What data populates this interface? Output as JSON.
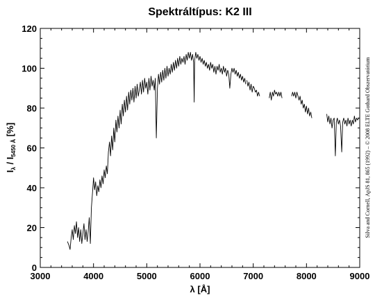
{
  "chart_data": {
    "type": "line",
    "title": "Spektráltípus: K2 III",
    "xlabel": "λ [Å]",
    "ylabel": {
      "main_a": "I",
      "sub_a": "λ",
      "sep": " / I",
      "sub_b": "5450 Å",
      "unit": " [%]"
    },
    "xlim": [
      3000,
      9000
    ],
    "ylim": [
      0,
      120
    ],
    "xticks": [
      "3000",
      "4000",
      "5000",
      "6000",
      "7000",
      "8000",
      "9000"
    ],
    "yticks": [
      "0",
      "20",
      "40",
      "60",
      "80",
      "100",
      "120"
    ],
    "xtick_values": [
      3000,
      4000,
      5000,
      6000,
      7000,
      8000,
      9000
    ],
    "ytick_values": [
      0,
      20,
      40,
      60,
      80,
      100,
      120
    ],
    "credit": "Silva and Cornell, ApJS 81, 865 (1992) – © 2008 ELTE Gothard Obszervatórium",
    "grid": false,
    "series": [
      {
        "segments": [
          [
            [
              3510,
              13
            ],
            [
              3540,
              11
            ],
            [
              3560,
              9
            ],
            [
              3580,
              15
            ],
            [
              3600,
              19
            ],
            [
              3620,
              14
            ],
            [
              3640,
              21
            ],
            [
              3660,
              17
            ],
            [
              3680,
              23
            ],
            [
              3700,
              15
            ],
            [
              3720,
              20
            ],
            [
              3740,
              13
            ],
            [
              3760,
              19
            ],
            [
              3780,
              12
            ],
            [
              3800,
              17
            ],
            [
              3820,
              22
            ],
            [
              3840,
              14
            ],
            [
              3860,
              19
            ],
            [
              3880,
              13
            ],
            [
              3900,
              18
            ],
            [
              3920,
              25
            ],
            [
              3940,
              12
            ],
            [
              3960,
              30
            ],
            [
              3980,
              37
            ],
            [
              4000,
              45
            ],
            [
              4020,
              39
            ],
            [
              4040,
              43
            ],
            [
              4060,
              36
            ],
            [
              4080,
              41
            ],
            [
              4100,
              38
            ],
            [
              4120,
              44
            ],
            [
              4140,
              40
            ],
            [
              4160,
              46
            ],
            [
              4180,
              42
            ],
            [
              4200,
              49
            ],
            [
              4220,
              45
            ],
            [
              4240,
              51
            ],
            [
              4260,
              47
            ],
            [
              4280,
              58
            ],
            [
              4300,
              63
            ],
            [
              4320,
              56
            ],
            [
              4340,
              66
            ],
            [
              4360,
              59
            ],
            [
              4380,
              70
            ],
            [
              4400,
              63
            ],
            [
              4420,
              74
            ],
            [
              4440,
              68
            ],
            [
              4460,
              76
            ],
            [
              4480,
              70
            ],
            [
              4500,
              79
            ],
            [
              4520,
              72
            ],
            [
              4540,
              82
            ],
            [
              4560,
              76
            ],
            [
              4580,
              84
            ],
            [
              4600,
              78
            ],
            [
              4620,
              86
            ],
            [
              4640,
              79
            ],
            [
              4660,
              88
            ],
            [
              4680,
              82
            ],
            [
              4700,
              89
            ],
            [
              4720,
              84
            ],
            [
              4740,
              90
            ],
            [
              4760,
              83
            ],
            [
              4780,
              91
            ],
            [
              4800,
              85
            ],
            [
              4820,
              92
            ],
            [
              4840,
              86
            ],
            [
              4860,
              89
            ],
            [
              4880,
              93
            ],
            [
              4900,
              87
            ],
            [
              4920,
              94
            ],
            [
              4940,
              88
            ],
            [
              4960,
              95
            ],
            [
              4980,
              90
            ],
            [
              5000,
              93
            ],
            [
              5020,
              87
            ],
            [
              5040,
              95
            ],
            [
              5060,
              89
            ],
            [
              5080,
              96
            ],
            [
              5100,
              91
            ],
            [
              5120,
              94
            ],
            [
              5140,
              89
            ],
            [
              5160,
              95
            ],
            [
              5180,
              65
            ],
            [
              5200,
              90
            ],
            [
              5220,
              97
            ],
            [
              5240,
              92
            ],
            [
              5260,
              98
            ],
            [
              5280,
              93
            ],
            [
              5300,
              99
            ],
            [
              5320,
              94
            ],
            [
              5340,
              100
            ],
            [
              5360,
              95
            ],
            [
              5380,
              101
            ],
            [
              5400,
              96
            ],
            [
              5420,
              100
            ],
            [
              5440,
              97
            ],
            [
              5460,
              102
            ],
            [
              5480,
              98
            ],
            [
              5500,
              103
            ],
            [
              5520,
              99
            ],
            [
              5540,
              104
            ],
            [
              5560,
              100
            ],
            [
              5580,
              105
            ],
            [
              5600,
              101
            ],
            [
              5620,
              106
            ],
            [
              5640,
              102
            ],
            [
              5660,
              105
            ],
            [
              5680,
              103
            ],
            [
              5700,
              106
            ],
            [
              5720,
              102
            ],
            [
              5740,
              107
            ],
            [
              5760,
              104
            ],
            [
              5780,
              108
            ],
            [
              5800,
              105
            ],
            [
              5820,
              108
            ],
            [
              5840,
              104
            ],
            [
              5860,
              107
            ],
            [
              5880,
              103
            ],
            [
              5890,
              83
            ],
            [
              5900,
              104
            ],
            [
              5920,
              108
            ],
            [
              5940,
              105
            ],
            [
              5960,
              107
            ],
            [
              5980,
              104
            ],
            [
              6000,
              106
            ],
            [
              6020,
              103
            ],
            [
              6040,
              105
            ],
            [
              6060,
              102
            ],
            [
              6080,
              104
            ],
            [
              6100,
              101
            ],
            [
              6120,
              103
            ],
            [
              6140,
              100
            ],
            [
              6160,
              102
            ],
            [
              6180,
              99
            ],
            [
              6200,
              103
            ],
            [
              6220,
              100
            ],
            [
              6240,
              102
            ],
            [
              6260,
              98
            ],
            [
              6280,
              101
            ],
            [
              6300,
              97
            ],
            [
              6320,
              101
            ],
            [
              6340,
              99
            ],
            [
              6360,
              102
            ],
            [
              6380,
              98
            ],
            [
              6400,
              100
            ],
            [
              6420,
              97
            ],
            [
              6440,
              101
            ],
            [
              6460,
              98
            ],
            [
              6480,
              100
            ],
            [
              6500,
              96
            ],
            [
              6520,
              99
            ],
            [
              6540,
              97
            ],
            [
              6560,
              90
            ],
            [
              6580,
              97
            ],
            [
              6600,
              100
            ],
            [
              6620,
              98
            ],
            [
              6640,
              100
            ],
            [
              6660,
              97
            ],
            [
              6680,
              99
            ],
            [
              6700,
              96
            ],
            [
              6720,
              98
            ],
            [
              6740,
              95
            ],
            [
              6760,
              97
            ],
            [
              6780,
              94
            ],
            [
              6800,
              96
            ],
            [
              6820,
              93
            ],
            [
              6840,
              95
            ],
            [
              6860,
              92
            ]
          ],
          [
            [
              6880,
              94
            ],
            [
              6900,
              91
            ],
            [
              6920,
              93
            ],
            [
              6940,
              89
            ],
            [
              6960,
              92
            ],
            [
              6980,
              88
            ],
            [
              7000,
              91
            ],
            [
              7020,
              90
            ],
            [
              7040,
              88
            ],
            [
              7060,
              89
            ],
            [
              7080,
              86
            ],
            [
              7100,
              88
            ],
            [
              7120,
              86
            ]
          ],
          [
            [
              7300,
              85
            ],
            [
              7320,
              88
            ],
            [
              7340,
              84
            ],
            [
              7360,
              88
            ],
            [
              7380,
              86
            ],
            [
              7400,
              89
            ],
            [
              7420,
              87
            ],
            [
              7440,
              88
            ],
            [
              7460,
              86
            ],
            [
              7480,
              88
            ],
            [
              7500,
              86
            ],
            [
              7520,
              88
            ],
            [
              7540,
              85
            ]
          ],
          [
            [
              7720,
              86
            ],
            [
              7740,
              88
            ],
            [
              7760,
              86
            ],
            [
              7780,
              88
            ],
            [
              7800,
              85
            ],
            [
              7820,
              88
            ],
            [
              7840,
              86
            ],
            [
              7860,
              84
            ],
            [
              7880,
              86
            ],
            [
              7900,
              82
            ],
            [
              7920,
              84
            ],
            [
              7940,
              80
            ],
            [
              7960,
              82
            ],
            [
              7980,
              78
            ],
            [
              8000,
              81
            ],
            [
              8020,
              77
            ],
            [
              8040,
              80
            ],
            [
              8060,
              76
            ],
            [
              8080,
              78
            ],
            [
              8100,
              75
            ]
          ],
          [
            [
              8380,
              77
            ],
            [
              8400,
              73
            ],
            [
              8420,
              76
            ],
            [
              8440,
              72
            ],
            [
              8460,
              75
            ],
            [
              8480,
              70
            ],
            [
              8500,
              74
            ],
            [
              8520,
              75
            ],
            [
              8542,
              56
            ],
            [
              8560,
              73
            ],
            [
              8580,
              75
            ],
            [
              8600,
              72
            ],
            [
              8620,
              74
            ],
            [
              8640,
              71
            ],
            [
              8662,
              58
            ],
            [
              8680,
              73
            ],
            [
              8700,
              75
            ],
            [
              8720,
              72
            ],
            [
              8740,
              74
            ],
            [
              8760,
              71
            ],
            [
              8780,
              75
            ],
            [
              8800,
              72
            ],
            [
              8820,
              74
            ],
            [
              8840,
              71
            ],
            [
              8860,
              74
            ],
            [
              8880,
              72
            ],
            [
              8900,
              76
            ],
            [
              8920,
              73
            ],
            [
              8940,
              75
            ],
            [
              8960,
              74
            ],
            [
              8980,
              75
            ]
          ]
        ]
      }
    ]
  }
}
